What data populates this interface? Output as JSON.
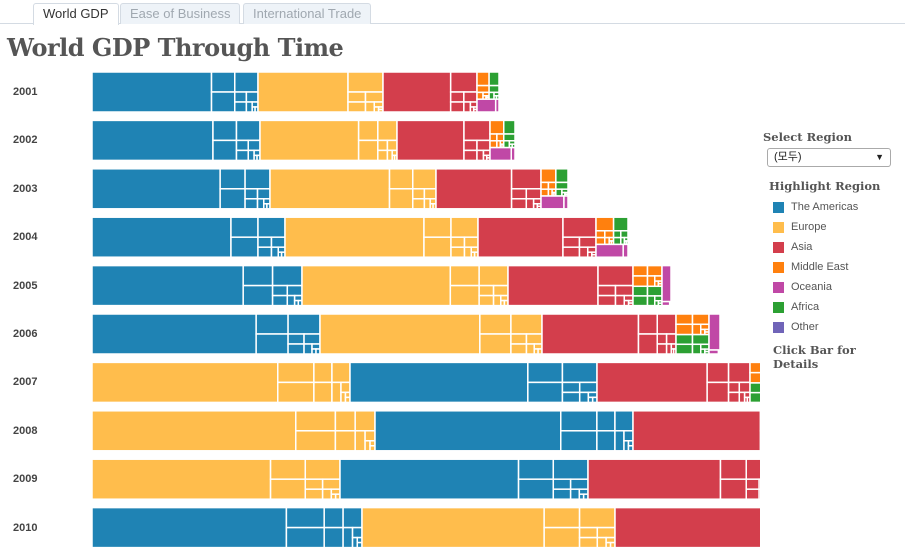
{
  "tabs": [
    {
      "label": "World GDP",
      "active": true
    },
    {
      "label": "Ease of Business",
      "active": false
    },
    {
      "label": "International Trade",
      "active": false
    }
  ],
  "title": "World GDP Through Time",
  "sidebar": {
    "select_label": "Select Region",
    "select_value": "(모두)",
    "highlight_label": "Highlight Region",
    "legend": [
      {
        "label": "The Americas",
        "color": "#1f83b4"
      },
      {
        "label": "Europe",
        "color": "#ffbd4c"
      },
      {
        "label": "Asia",
        "color": "#d33e4c"
      },
      {
        "label": "Middle East",
        "color": "#ff800e"
      },
      {
        "label": "Oceania",
        "color": "#c048a6"
      },
      {
        "label": "Africa",
        "color": "#2ca033"
      },
      {
        "label": "Other",
        "color": "#7064b8"
      }
    ],
    "footer": "Click Bar for Details"
  },
  "chart_data": {
    "type": "bar",
    "subtype": "stacked treemap bars",
    "orientation": "horizontal",
    "categories": [
      "2001",
      "2002",
      "2003",
      "2004",
      "2005",
      "2006",
      "2007",
      "2008",
      "2009",
      "2010"
    ],
    "series_order_per_year": [
      [
        "The Americas",
        "Europe",
        "Asia",
        "Middle East",
        "Africa",
        "Oceania"
      ],
      [
        "The Americas",
        "Europe",
        "Asia",
        "Middle East",
        "Africa",
        "Oceania"
      ],
      [
        "The Americas",
        "Europe",
        "Asia",
        "Middle East",
        "Africa",
        "Oceania"
      ],
      [
        "The Americas",
        "Europe",
        "Asia",
        "Middle East",
        "Africa",
        "Oceania"
      ],
      [
        "The Americas",
        "Europe",
        "Asia",
        "Middle East",
        "Africa",
        "Oceania"
      ],
      [
        "The Americas",
        "Europe",
        "Asia",
        "Middle East",
        "Africa",
        "Oceania"
      ],
      [
        "Europe",
        "The Americas",
        "Asia",
        "Middle East",
        "Africa",
        "Oceania"
      ],
      [
        "Europe",
        "The Americas",
        "Asia",
        "Middle East",
        "Africa",
        "Oceania"
      ],
      [
        "Europe",
        "The Americas",
        "Asia",
        "Middle East",
        "Africa",
        "Oceania"
      ],
      [
        "The Americas",
        "Europe",
        "Asia",
        "Middle East",
        "Africa",
        "Oceania"
      ]
    ],
    "series": [
      {
        "name": "The Americas",
        "values": [
          166,
          168,
          178,
          193,
          210,
          228,
          247,
          258,
          248,
          270
        ]
      },
      {
        "name": "Europe",
        "values": [
          125,
          137,
          166,
          193,
          206,
          222,
          258,
          283,
          248,
          253
        ]
      },
      {
        "name": "Asia",
        "values": [
          94,
          93,
          105,
          118,
          125,
          134,
          153,
          177,
          184,
          214
        ]
      },
      {
        "name": "Middle East",
        "values": [
          9,
          10,
          11,
          13,
          15,
          17,
          19,
          22,
          20,
          22
        ]
      },
      {
        "name": "Africa",
        "values": [
          8,
          9,
          10,
          11,
          14,
          16,
          18,
          22,
          20,
          20
        ]
      },
      {
        "name": "Oceania",
        "values": [
          5,
          6,
          6,
          8,
          9,
          11,
          13,
          15,
          14,
          16
        ]
      }
    ],
    "grid": false,
    "legend": "right"
  }
}
